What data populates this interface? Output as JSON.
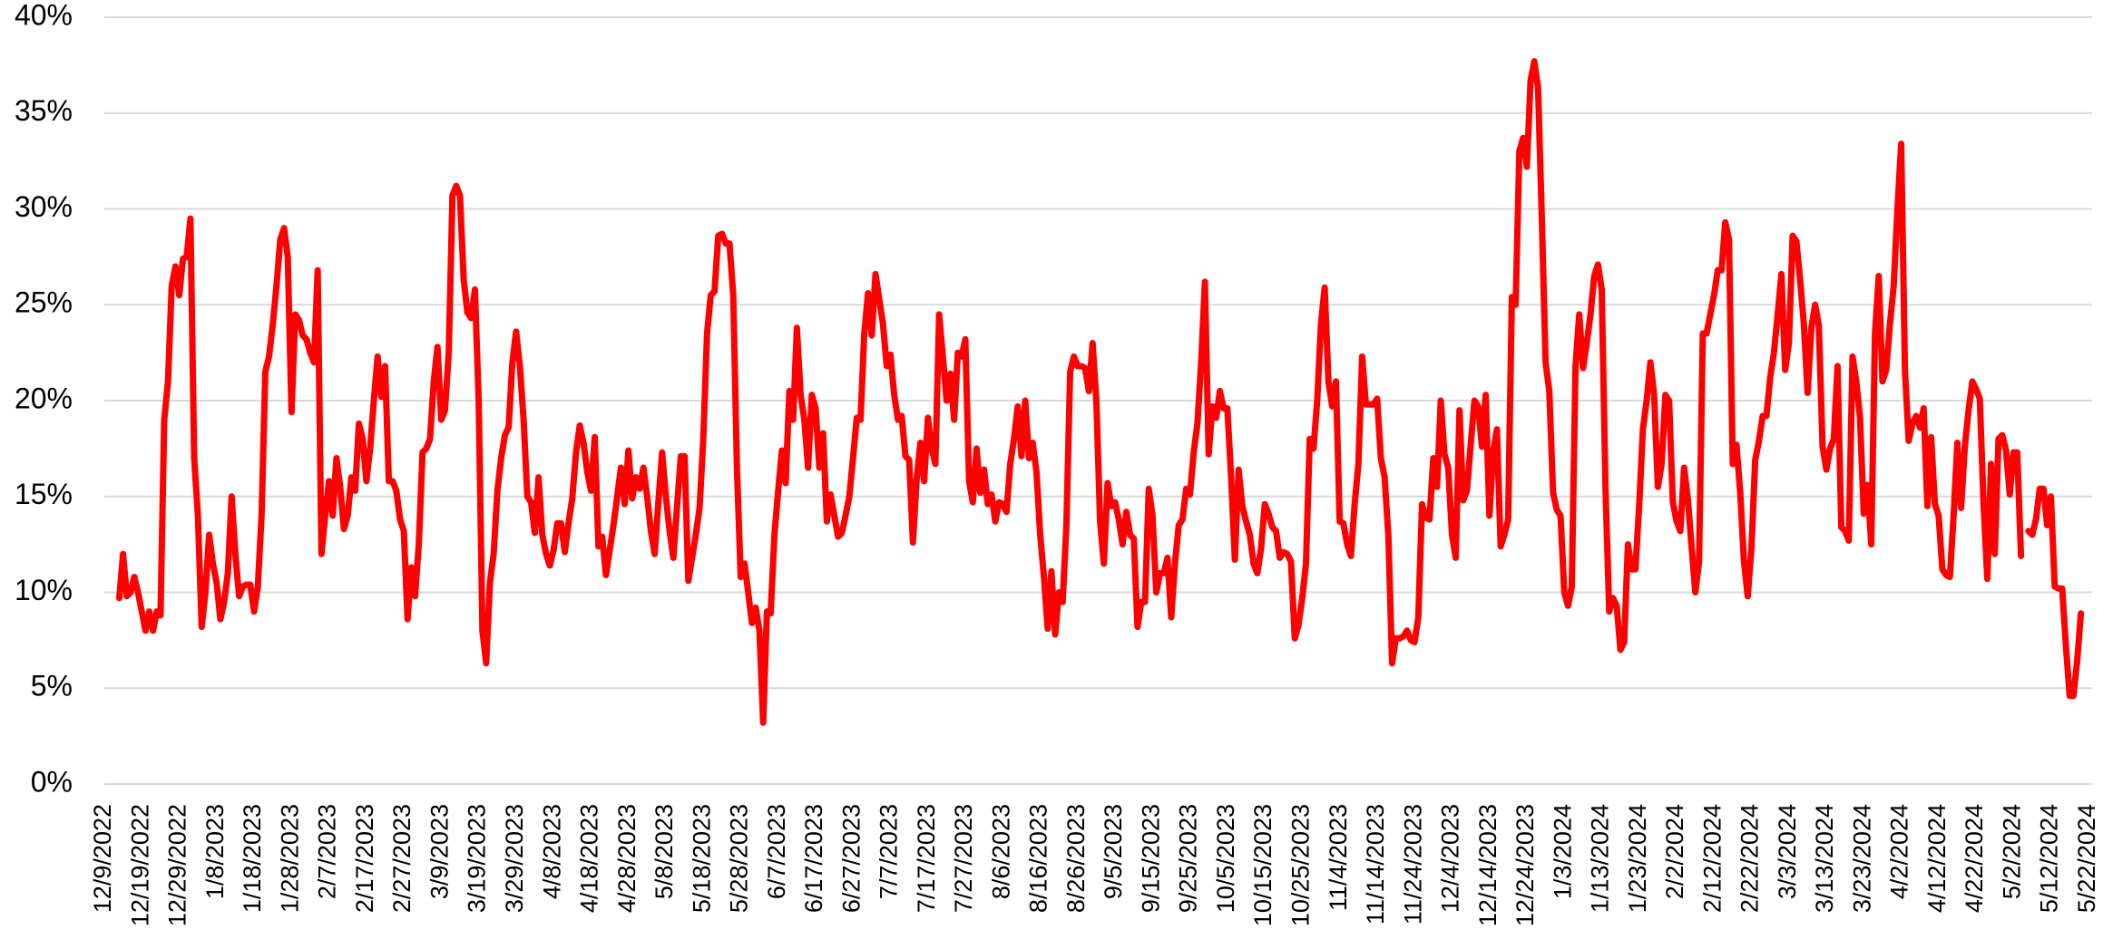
{
  "chart_data": {
    "type": "line",
    "color": "#ff0000",
    "grid": true,
    "ylim": [
      0,
      40
    ],
    "yticks": [
      {
        "value": 0,
        "label": "0%"
      },
      {
        "value": 5,
        "label": "5%"
      },
      {
        "value": 10,
        "label": "10%"
      },
      {
        "value": 15,
        "label": "15%"
      },
      {
        "value": 20,
        "label": "20%"
      },
      {
        "value": 25,
        "label": "25%"
      },
      {
        "value": 30,
        "label": "30%"
      },
      {
        "value": 35,
        "label": "35%"
      },
      {
        "value": 40,
        "label": "40%"
      }
    ],
    "xlim": [
      "12/9/2022",
      "5/23/2024"
    ],
    "xticks": [
      "12/9/2022",
      "12/19/2022",
      "12/29/2022",
      "1/8/2023",
      "1/18/2023",
      "1/28/2023",
      "2/7/2023",
      "2/17/2023",
      "2/27/2023",
      "3/9/2023",
      "3/19/2023",
      "3/29/2023",
      "4/8/2023",
      "4/18/2023",
      "4/28/2023",
      "5/8/2023",
      "5/18/2023",
      "5/28/2023",
      "6/7/2023",
      "6/17/2023",
      "6/27/2023",
      "7/7/2023",
      "7/17/2023",
      "7/27/2023",
      "8/6/2023",
      "8/16/2023",
      "8/26/2023",
      "9/5/2023",
      "9/15/2023",
      "9/25/2023",
      "10/5/2023",
      "10/15/2023",
      "10/25/2023",
      "11/4/2023",
      "11/14/2023",
      "11/24/2023",
      "12/4/2023",
      "12/14/2023",
      "12/24/2023",
      "1/3/2024",
      "1/13/2024",
      "1/23/2024",
      "2/2/2024",
      "2/12/2024",
      "2/22/2024",
      "3/3/2024",
      "3/13/2024",
      "3/23/2024",
      "4/2/2024",
      "4/12/2024",
      "4/22/2024",
      "5/2/2024",
      "5/12/2024",
      "5/22/2024"
    ],
    "x": [
      "12/13/2022",
      "12/14/2022",
      "12/15/2022",
      "12/16/2022",
      "12/17/2022",
      "12/18/2022",
      "12/19/2022",
      "12/20/2022",
      "12/21/2022",
      "12/22/2022",
      "12/23/2022",
      "12/24/2022",
      "12/25/2022",
      "12/26/2022",
      "12/27/2022",
      "12/28/2022",
      "12/29/2022",
      "12/30/2022",
      "12/31/2022",
      "1/1/2023",
      "1/2/2023",
      "1/3/2023",
      "1/4/2023",
      "1/5/2023",
      "1/6/2023",
      "1/7/2023",
      "1/8/2023",
      "1/9/2023",
      "1/10/2023",
      "1/11/2023",
      "1/12/2023",
      "1/13/2023",
      "1/14/2023",
      "1/15/2023",
      "1/16/2023",
      "1/17/2023",
      "1/18/2023",
      "1/19/2023",
      "1/20/2023",
      "1/21/2023",
      "1/22/2023",
      "1/23/2023",
      "1/24/2023",
      "1/25/2023",
      "1/26/2023",
      "1/27/2023",
      "1/28/2023",
      "1/29/2023",
      "1/30/2023",
      "1/31/2023",
      "2/1/2023",
      "2/2/2023",
      "2/3/2023",
      "2/4/2023",
      "2/5/2023",
      "2/6/2023",
      "2/7/2023",
      "2/8/2023",
      "2/9/2023",
      "2/10/2023",
      "2/11/2023",
      "2/12/2023",
      "2/13/2023",
      "2/14/2023",
      "2/15/2023",
      "2/16/2023",
      "2/17/2023",
      "2/18/2023",
      "2/19/2023",
      "2/20/2023",
      "2/21/2023",
      "2/22/2023",
      "2/23/2023",
      "2/24/2023",
      "2/25/2023",
      "2/26/2023",
      "2/27/2023",
      "2/28/2023",
      "3/1/2023",
      "3/2/2023",
      "3/3/2023",
      "3/4/2023",
      "3/5/2023",
      "3/6/2023",
      "3/7/2023",
      "3/8/2023",
      "3/9/2023",
      "3/10/2023",
      "3/11/2023",
      "3/12/2023",
      "3/13/2023",
      "3/14/2023",
      "3/15/2023",
      "3/16/2023",
      "3/17/2023",
      "3/18/2023",
      "3/19/2023",
      "3/20/2023",
      "3/21/2023",
      "3/22/2023",
      "3/23/2023",
      "3/24/2023",
      "3/25/2023",
      "3/26/2023",
      "3/27/2023",
      "3/28/2023",
      "3/29/2023",
      "3/30/2023",
      "3/31/2023",
      "4/1/2023",
      "4/2/2023",
      "4/3/2023",
      "4/4/2023",
      "4/5/2023",
      "4/6/2023",
      "4/7/2023",
      "4/8/2023",
      "4/9/2023",
      "4/10/2023",
      "4/11/2023",
      "4/12/2023",
      "4/13/2023",
      "4/14/2023",
      "4/15/2023",
      "4/16/2023",
      "4/17/2023",
      "4/18/2023",
      "4/19/2023",
      "4/20/2023",
      "4/21/2023",
      "4/22/2023",
      "4/23/2023",
      "4/24/2023",
      "4/25/2023",
      "4/26/2023",
      "4/27/2023",
      "4/28/2023",
      "4/29/2023",
      "4/30/2023",
      "5/1/2023",
      "5/2/2023",
      "5/3/2023",
      "5/4/2023",
      "5/5/2023",
      "5/6/2023",
      "5/7/2023",
      "5/8/2023",
      "5/9/2023",
      "5/10/2023",
      "5/11/2023",
      "5/12/2023",
      "5/13/2023",
      "5/14/2023",
      "5/15/2023",
      "5/16/2023",
      "5/17/2023",
      "5/18/2023",
      "5/19/2023",
      "5/20/2023",
      "5/21/2023",
      "5/22/2023",
      "5/23/2023",
      "5/24/2023",
      "5/25/2023",
      "5/26/2023",
      "5/27/2023",
      "5/28/2023",
      "5/29/2023",
      "5/30/2023",
      "5/31/2023",
      "6/1/2023",
      "6/2/2023",
      "6/3/2023",
      "6/4/2023",
      "6/5/2023",
      "6/6/2023",
      "6/7/2023",
      "6/8/2023",
      "6/9/2023",
      "6/10/2023",
      "6/11/2023",
      "6/12/2023",
      "6/13/2023",
      "6/14/2023",
      "6/15/2023",
      "6/16/2023",
      "6/17/2023",
      "6/18/2023",
      "6/19/2023",
      "6/20/2023",
      "6/21/2023",
      "6/22/2023",
      "6/23/2023",
      "6/24/2023",
      "6/25/2023",
      "6/26/2023",
      "6/27/2023",
      "6/28/2023",
      "6/29/2023",
      "6/30/2023",
      "7/1/2023",
      "7/2/2023",
      "7/3/2023",
      "7/4/2023",
      "7/5/2023",
      "7/6/2023",
      "7/7/2023",
      "7/8/2023",
      "7/9/2023",
      "7/10/2023",
      "7/11/2023",
      "7/12/2023",
      "7/13/2023",
      "7/14/2023",
      "7/15/2023",
      "7/16/2023",
      "7/17/2023",
      "7/18/2023",
      "7/19/2023",
      "7/20/2023",
      "7/21/2023",
      "7/22/2023",
      "7/23/2023",
      "7/24/2023",
      "7/25/2023",
      "7/26/2023",
      "7/27/2023",
      "7/28/2023",
      "7/29/2023",
      "7/30/2023",
      "7/31/2023",
      "8/1/2023",
      "8/2/2023",
      "8/3/2023",
      "8/4/2023",
      "8/5/2023",
      "8/6/2023",
      "8/7/2023",
      "8/8/2023",
      "8/9/2023",
      "8/10/2023",
      "8/11/2023",
      "8/12/2023",
      "8/13/2023",
      "8/14/2023",
      "8/15/2023",
      "8/16/2023",
      "8/17/2023",
      "8/18/2023",
      "8/19/2023",
      "8/20/2023",
      "8/21/2023",
      "8/22/2023",
      "8/23/2023",
      "8/24/2023",
      "8/25/2023",
      "8/26/2023",
      "8/27/2023",
      "8/28/2023",
      "8/29/2023",
      "8/30/2023",
      "8/31/2023",
      "9/1/2023",
      "9/2/2023",
      "9/3/2023",
      "9/4/2023",
      "9/5/2023",
      "9/6/2023",
      "9/7/2023",
      "9/8/2023",
      "9/9/2023",
      "9/10/2023",
      "9/11/2023",
      "9/12/2023",
      "9/13/2023",
      "9/14/2023",
      "9/15/2023",
      "9/16/2023",
      "9/17/2023",
      "9/18/2023",
      "9/19/2023",
      "9/20/2023",
      "9/21/2023",
      "9/22/2023",
      "9/23/2023",
      "9/24/2023",
      "9/25/2023",
      "9/26/2023",
      "9/27/2023",
      "9/28/2023",
      "9/29/2023",
      "9/30/2023",
      "10/1/2023",
      "10/2/2023",
      "10/3/2023",
      "10/4/2023",
      "10/5/2023",
      "10/6/2023",
      "10/7/2023",
      "10/8/2023",
      "10/9/2023",
      "10/10/2023",
      "10/11/2023",
      "10/12/2023",
      "10/13/2023",
      "10/14/2023",
      "10/15/2023",
      "10/16/2023",
      "10/17/2023",
      "10/18/2023",
      "10/19/2023",
      "10/20/2023",
      "10/21/2023",
      "10/22/2023",
      "10/23/2023",
      "10/24/2023",
      "10/25/2023",
      "10/26/2023",
      "10/27/2023",
      "10/28/2023",
      "10/29/2023",
      "10/30/2023",
      "10/31/2023",
      "11/1/2023",
      "11/2/2023",
      "11/3/2023",
      "11/4/2023",
      "11/5/2023",
      "11/6/2023",
      "11/7/2023",
      "11/8/2023",
      "11/9/2023",
      "11/10/2023",
      "11/11/2023",
      "11/12/2023",
      "11/13/2023",
      "11/14/2023",
      "11/15/2023",
      "11/16/2023",
      "11/17/2023",
      "11/18/2023",
      "11/19/2023",
      "11/20/2023",
      "11/21/2023",
      "11/22/2023",
      "11/23/2023",
      "11/24/2023",
      "11/25/2023",
      "11/26/2023",
      "11/27/2023",
      "11/28/2023",
      "11/29/2023",
      "11/30/2023",
      "12/1/2023",
      "12/2/2023",
      "12/3/2023",
      "12/4/2023",
      "12/5/2023",
      "12/6/2023",
      "12/7/2023",
      "12/8/2023",
      "12/9/2023",
      "12/10/2023",
      "12/11/2023",
      "12/12/2023",
      "12/13/2023",
      "12/14/2023",
      "12/15/2023",
      "12/16/2023",
      "12/17/2023",
      "12/18/2023",
      "12/19/2023",
      "12/20/2023",
      "12/21/2023",
      "12/22/2023",
      "12/23/2023",
      "12/24/2023",
      "12/25/2023",
      "12/26/2023",
      "12/27/2023",
      "12/28/2023",
      "12/29/2023",
      "12/30/2023",
      "12/31/2023",
      "1/1/2024",
      "1/2/2024",
      "1/3/2024",
      "1/4/2024",
      "1/5/2024",
      "1/6/2024",
      "1/7/2024",
      "1/8/2024",
      "1/9/2024",
      "1/10/2024",
      "1/11/2024",
      "1/12/2024",
      "1/13/2024",
      "1/14/2024",
      "1/15/2024",
      "1/16/2024",
      "1/17/2024",
      "1/18/2024",
      "1/19/2024",
      "1/20/2024",
      "1/21/2024",
      "1/22/2024",
      "1/23/2024",
      "1/24/2024",
      "1/25/2024",
      "1/26/2024",
      "1/27/2024",
      "1/28/2024",
      "1/29/2024",
      "1/30/2024",
      "1/31/2024",
      "2/1/2024",
      "2/2/2024",
      "2/3/2024",
      "2/4/2024",
      "2/5/2024",
      "2/6/2024",
      "2/7/2024",
      "2/8/2024",
      "2/9/2024",
      "2/10/2024",
      "2/11/2024",
      "2/12/2024",
      "2/13/2024",
      "2/14/2024",
      "2/15/2024",
      "2/16/2024",
      "2/17/2024",
      "2/18/2024",
      "2/19/2024",
      "2/20/2024",
      "2/21/2024",
      "2/22/2024",
      "2/23/2024",
      "2/24/2024",
      "2/25/2024",
      "2/26/2024",
      "2/27/2024",
      "2/28/2024",
      "2/29/2024",
      "3/1/2024",
      "3/2/2024",
      "3/3/2024",
      "3/4/2024",
      "3/5/2024",
      "3/6/2024",
      "3/7/2024",
      "3/8/2024",
      "3/9/2024",
      "3/10/2024",
      "3/11/2024",
      "3/12/2024",
      "3/13/2024",
      "3/14/2024",
      "3/15/2024",
      "3/16/2024",
      "3/17/2024",
      "3/18/2024",
      "3/19/2024",
      "3/20/2024",
      "3/21/2024",
      "3/22/2024",
      "3/23/2024",
      "3/24/2024",
      "3/25/2024",
      "3/26/2024",
      "3/27/2024",
      "3/28/2024",
      "3/29/2024",
      "3/30/2024",
      "3/31/2024",
      "4/1/2024",
      "4/2/2024",
      "4/3/2024",
      "4/4/2024",
      "4/5/2024",
      "4/6/2024",
      "4/7/2024",
      "4/8/2024",
      "4/9/2024",
      "4/10/2024",
      "4/11/2024",
      "4/12/2024",
      "4/13/2024",
      "4/14/2024",
      "4/15/2024",
      "4/16/2024",
      "4/17/2024",
      "4/18/2024",
      "4/19/2024",
      "4/20/2024",
      "4/21/2024",
      "4/22/2024",
      "4/23/2024",
      "4/24/2024",
      "4/25/2024",
      "4/26/2024",
      "4/27/2024",
      "4/28/2024",
      "4/29/2024",
      "4/30/2024",
      "5/1/2024",
      "5/2/2024",
      "5/3/2024",
      "5/4/2024",
      "5/5/2024",
      "5/6/2024",
      "5/7/2024",
      "5/8/2024",
      "5/9/2024",
      "5/10/2024",
      "5/11/2024",
      "5/12/2024",
      "5/13/2024",
      "5/14/2024",
      "5/15/2024",
      "5/16/2024",
      "5/17/2024",
      "5/18/2024",
      "5/19/2024",
      "5/20/2024"
    ],
    "values": [
      9.7,
      12,
      9.8,
      10,
      10.8,
      10,
      9,
      8,
      9,
      8,
      9,
      8.8,
      19,
      21,
      26,
      27,
      25.5,
      27.4,
      27.5,
      29.5,
      17,
      14,
      8.2,
      10,
      13,
      11.5,
      10.5,
      8.6,
      9.5,
      11,
      15,
      12,
      9.8,
      10.3,
      10.4,
      10.4,
      9,
      10.3,
      14,
      21.5,
      22.3,
      24,
      26,
      28.4,
      29,
      27.5,
      19.4,
      24.5,
      24.2,
      23.4,
      23.2,
      22.5,
      22,
      26.8,
      12,
      14,
      15.8,
      14,
      17,
      15.5,
      13.3,
      14,
      16,
      15.3,
      18.8,
      18,
      15.8,
      17.5,
      20,
      22.3,
      20.2,
      21.8,
      15.8,
      15.8,
      15.3,
      13.8,
      13.2,
      8.6,
      11.3,
      9.8,
      12.5,
      17.3,
      17.5,
      18,
      21,
      22.8,
      19,
      19.5,
      22.5,
      30.7,
      31.2,
      30.7,
      26.3,
      24.6,
      24.3,
      25.8,
      20,
      8,
      6.3,
      10.5,
      12,
      15.3,
      17,
      18.2,
      18.6,
      22,
      23.6,
      21.8,
      19,
      15,
      14.7,
      13.1,
      16,
      13,
      12,
      11.4,
      12.2,
      13.6,
      13.6,
      12.1,
      13.6,
      14.9,
      17.3,
      18.7,
      17.8,
      16.3,
      15.3,
      18.1,
      12.4,
      12.9,
      10.9,
      12.2,
      13.5,
      15,
      16.5,
      14.6,
      17.4,
      14.9,
      16,
      15.4,
      16.5,
      15,
      13.2,
      12,
      14.7,
      17.3,
      15,
      13.2,
      11.8,
      14.5,
      17.1,
      17.1,
      10.6,
      11.8,
      13,
      14.4,
      18,
      23.5,
      25.5,
      25.7,
      28.6,
      28.7,
      28.2,
      28.2,
      25.5,
      16.4,
      10.8,
      11.5,
      10,
      8.4,
      9.2,
      8,
      3.2,
      9,
      8.9,
      13,
      15.3,
      17.4,
      15.7,
      20.5,
      19,
      23.8,
      20.3,
      19,
      16.5,
      20.3,
      19.6,
      16.5,
      18.3,
      13.7,
      15.1,
      14,
      12.9,
      13.1,
      14,
      15,
      17,
      19.1,
      19,
      23.5,
      25.6,
      23.4,
      26.6,
      25.3,
      24,
      21.8,
      22.4,
      20.3,
      19,
      19.2,
      17.1,
      16.9,
      12.6,
      15.9,
      17.8,
      15.8,
      19.1,
      17.5,
      16.7,
      24.5,
      22.3,
      20,
      21.4,
      19,
      22.5,
      22.3,
      23.2,
      15.8,
      14.7,
      17.5,
      15.2,
      16.4,
      14.6,
      15.1,
      13.7,
      14.7,
      14.6,
      14.2,
      16.7,
      18,
      19.7,
      17.1,
      20,
      17,
      17.8,
      16.3,
      13,
      10.8,
      8.1,
      11.1,
      7.8,
      10,
      9.5,
      13.5,
      21.5,
      22.3,
      21.8,
      21.8,
      21.7,
      20.5,
      23,
      20,
      13.7,
      11.5,
      15.7,
      14.5,
      14.7,
      13.8,
      12.5,
      14.2,
      13,
      12.8,
      8.2,
      9.5,
      9.5,
      15.4,
      14,
      10,
      11,
      11,
      11.8,
      8.7,
      11.5,
      13.5,
      13.8,
      15.4,
      15.1,
      17.3,
      18.8,
      22,
      26.2,
      17.2,
      19.7,
      19.1,
      20.5,
      19.6,
      19.6,
      16,
      11.7,
      16.4,
      14.5,
      13.7,
      13,
      11.5,
      11,
      12.3,
      14.6,
      14.1,
      13.4,
      13.2,
      11.8,
      12.1,
      12,
      11.6,
      7.6,
      8.3,
      9.7,
      11.5,
      18,
      17.5,
      20,
      24,
      25.9,
      21,
      19.7,
      21,
      13.7,
      13.6,
      12.5,
      11.9,
      14.6,
      16.7,
      22.3,
      19.8,
      19.8,
      19.8,
      20.1,
      17,
      16,
      13,
      6.3,
      7.6,
      7.6,
      7.7,
      8,
      7.5,
      7.4,
      8.7,
      14.6,
      13.9,
      13.8,
      17,
      15.5,
      20,
      17.2,
      16.5,
      13,
      11.8,
      19.5,
      14.8,
      15.3,
      17.7,
      20,
      19.7,
      17.6,
      20.3,
      14,
      17.3,
      18.5,
      12.4,
      13,
      13.8,
      25.4,
      25,
      33,
      33.7,
      32.2,
      36.7,
      37.7,
      36.3,
      29.5,
      22,
      20.5,
      15.2,
      14.3,
      14,
      10,
      9.3,
      10.3,
      21.8,
      24.5,
      21.7,
      23,
      24.5,
      26.5,
      27.1,
      25.8,
      15.5,
      9,
      9.7,
      9.3,
      7,
      7.4,
      12.5,
      11.2,
      11.2,
      14.5,
      18.5,
      20,
      22,
      20.3,
      15.5,
      16.7,
      20.3,
      20,
      14.7,
      13.7,
      13.2,
      16.5,
      14.9,
      12.4,
      10,
      11.6,
      23.5,
      23.5,
      24.5,
      25.5,
      26.8,
      26.8,
      29.3,
      28.4,
      16.7,
      17.7,
      15.2,
      11.6,
      9.8,
      12.3,
      16.9,
      17.9,
      19.2,
      19.2,
      21.2,
      22.5,
      24.5,
      26.6,
      21.6,
      23,
      28.6,
      28.3,
      26.3,
      24,
      20.4,
      23.8,
      25,
      23.9,
      17.6,
      16.4,
      17.5,
      18,
      21.8,
      13.4,
      13.2,
      12.7,
      22.3,
      21,
      19.1,
      14.1,
      15.6,
      12.5,
      23.5,
      26.5,
      21,
      21.6,
      24,
      26,
      30,
      33.4,
      21.6,
      17.9,
      18.8,
      19.2,
      18.6,
      19.6,
      14.5,
      18.1,
      14.6,
      14,
      11.2,
      10.9,
      10.8,
      14,
      17.8,
      14.4,
      17.6,
      19.5,
      21,
      20.6,
      20.1,
      14.6,
      10.7,
      16.7,
      12,
      18,
      18.2,
      17.4,
      15.1,
      17.3,
      17.3,
      11.9,
      null,
      13.2,
      13,
      13.8,
      15.4,
      15.4,
      13.5,
      15,
      10.3,
      10.2,
      10.2,
      7.2,
      4.6,
      4.6,
      6.4,
      8.9
    ]
  }
}
